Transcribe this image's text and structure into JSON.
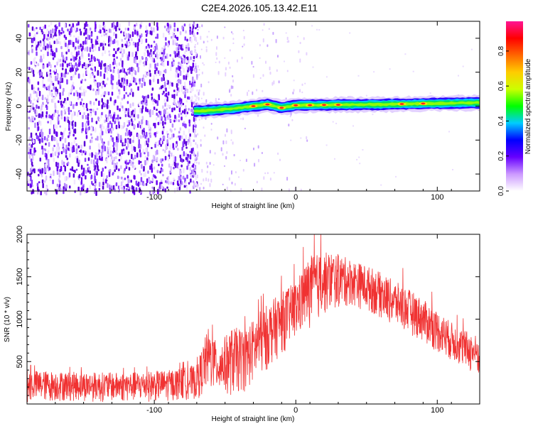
{
  "title": "C2E4.2026.105.13.42.E11",
  "chart_data": [
    {
      "type": "heatmap",
      "xlabel": "Height of straight line (km)",
      "ylabel": "Frequency (Hz)",
      "xlim": [
        -190,
        130
      ],
      "ylim": [
        -50,
        50
      ],
      "x_ticks": [
        -100,
        0,
        100
      ],
      "y_ticks": [
        -40,
        -20,
        0,
        20,
        40
      ],
      "noise_region_x": [
        -190,
        -70
      ],
      "signal_line": {
        "x_start": -72,
        "x_end": 130,
        "frequency_hz": [
          [
            -72,
            -3
          ],
          [
            -60,
            -2.5
          ],
          [
            -45,
            -1.5
          ],
          [
            -30,
            0
          ],
          [
            -20,
            1
          ],
          [
            -10,
            -1
          ],
          [
            0,
            0.5
          ],
          [
            30,
            0.8
          ],
          [
            60,
            1
          ],
          [
            90,
            1.5
          ],
          [
            130,
            2
          ]
        ],
        "peak_amplitude_x": [
          -30,
          -20,
          -10,
          0,
          10,
          20,
          30,
          75,
          90
        ]
      },
      "colorbar": {
        "label": "Normalized spectral amplitude",
        "range": [
          0.0,
          0.97
        ],
        "ticks": [
          0.0,
          0.2,
          0.4,
          0.6,
          0.8
        ]
      },
      "colors": [
        "#ffffff",
        "#e6c8ff",
        "#b07cff",
        "#6400ff",
        "#0000ff",
        "#00c8ff",
        "#00ff40",
        "#c8ff00",
        "#ffe000",
        "#ff6000",
        "#ff0000",
        "#ff1493"
      ]
    },
    {
      "type": "line",
      "xlabel": "Height of straight line (km)",
      "ylabel": "SNR (10 * v/v)",
      "xlim": [
        -190,
        130
      ],
      "ylim": [
        0,
        2000
      ],
      "x_ticks": [
        -100,
        0,
        100
      ],
      "y_ticks": [
        500,
        1000,
        1500,
        2000
      ],
      "color": "#f03232",
      "envelope": [
        {
          "x": -190,
          "low": 20,
          "high": 400
        },
        {
          "x": -160,
          "low": 30,
          "high": 380
        },
        {
          "x": -120,
          "low": 20,
          "high": 370
        },
        {
          "x": -90,
          "low": 30,
          "high": 400
        },
        {
          "x": -70,
          "low": 50,
          "high": 460
        },
        {
          "x": -62,
          "low": 150,
          "high": 900
        },
        {
          "x": -55,
          "low": 120,
          "high": 700
        },
        {
          "x": -45,
          "low": 80,
          "high": 900
        },
        {
          "x": -35,
          "low": 150,
          "high": 900
        },
        {
          "x": -25,
          "low": 300,
          "high": 1100
        },
        {
          "x": -15,
          "low": 500,
          "high": 1250
        },
        {
          "x": 0,
          "low": 750,
          "high": 1450
        },
        {
          "x": 10,
          "low": 900,
          "high": 1750
        },
        {
          "x": 25,
          "low": 1100,
          "high": 1800
        },
        {
          "x": 40,
          "low": 1150,
          "high": 1700
        },
        {
          "x": 55,
          "low": 1050,
          "high": 1600
        },
        {
          "x": 70,
          "low": 900,
          "high": 1450
        },
        {
          "x": 85,
          "low": 780,
          "high": 1300
        },
        {
          "x": 100,
          "low": 600,
          "high": 1100
        },
        {
          "x": 115,
          "low": 450,
          "high": 900
        },
        {
          "x": 130,
          "low": 300,
          "high": 800
        }
      ]
    }
  ]
}
